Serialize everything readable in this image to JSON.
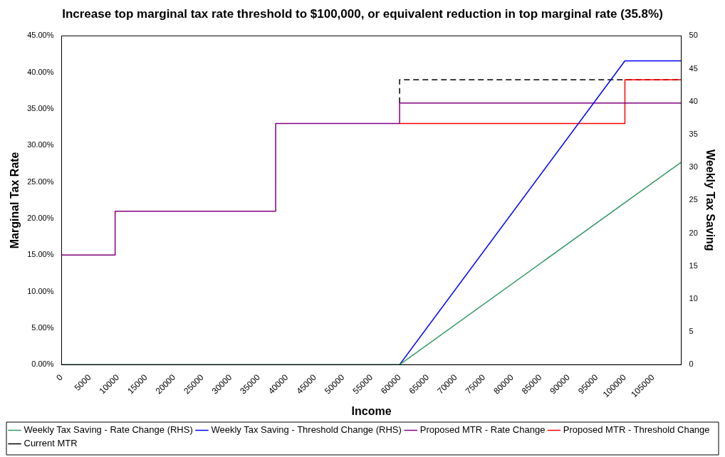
{
  "chart_data": {
    "type": "line",
    "title": "Increase top marginal tax rate threshold to $100,000, or equivalent reduction in top marginal rate (35.8%)",
    "xlabel": "Income",
    "ylabel": "Marginal Tax Rate",
    "y2label": "Weekly Tax Saving",
    "xlim": [
      0,
      110000
    ],
    "xticks": [
      0,
      5000,
      10000,
      15000,
      20000,
      25000,
      30000,
      35000,
      40000,
      45000,
      50000,
      55000,
      60000,
      65000,
      70000,
      75000,
      80000,
      85000,
      90000,
      95000,
      100000,
      105000
    ],
    "ylim": [
      0,
      45
    ],
    "yticks": [
      {
        "value": 0,
        "label": "0.00%"
      },
      {
        "value": 5,
        "label": "5.00%"
      },
      {
        "value": 10,
        "label": "10.00%"
      },
      {
        "value": 15,
        "label": "15.00%"
      },
      {
        "value": 20,
        "label": "20.00%"
      },
      {
        "value": 25,
        "label": "25.00%"
      },
      {
        "value": 30,
        "label": "30.00%"
      },
      {
        "value": 35,
        "label": "35.00%"
      },
      {
        "value": 40,
        "label": "40.00%"
      },
      {
        "value": 45,
        "label": "45.00%"
      }
    ],
    "y2lim": [
      0,
      50
    ],
    "y2ticks": [
      0,
      5,
      10,
      15,
      20,
      25,
      30,
      35,
      40,
      45,
      50
    ],
    "grid": false,
    "legend": "bottom",
    "marker": "none",
    "series": [
      {
        "name": "Current MTR",
        "color": "#000000",
        "line_style": "dashed",
        "x": [
          60000,
          60000,
          110000
        ],
        "values": [
          35.8,
          39,
          39
        ]
      },
      {
        "name": "Proposed MTR - Threshold Change",
        "color": "#ff0000",
        "x": [
          60000,
          100000,
          100000,
          110000
        ],
        "values": [
          33,
          33,
          39,
          39
        ]
      },
      {
        "name": "Proposed MTR - Rate Change",
        "color": "#800080",
        "x": [
          0,
          9500,
          9500,
          38000,
          38000,
          60000,
          60000,
          110000
        ],
        "values": [
          15,
          15,
          21,
          21,
          33,
          33,
          35.8,
          35.8
        ]
      },
      {
        "name": "Weekly Tax Saving - Threshold Change (RHS)",
        "color": "#0000ff",
        "axis": "y2",
        "x": [
          60000,
          100000,
          110000
        ],
        "values": [
          0,
          46.2,
          46.2
        ]
      },
      {
        "name": "Weekly Tax Saving - Rate Change (RHS)",
        "color": "#339966",
        "axis": "y2",
        "x": [
          0,
          60000,
          110000
        ],
        "values": [
          0,
          0,
          30.8
        ]
      }
    ]
  }
}
